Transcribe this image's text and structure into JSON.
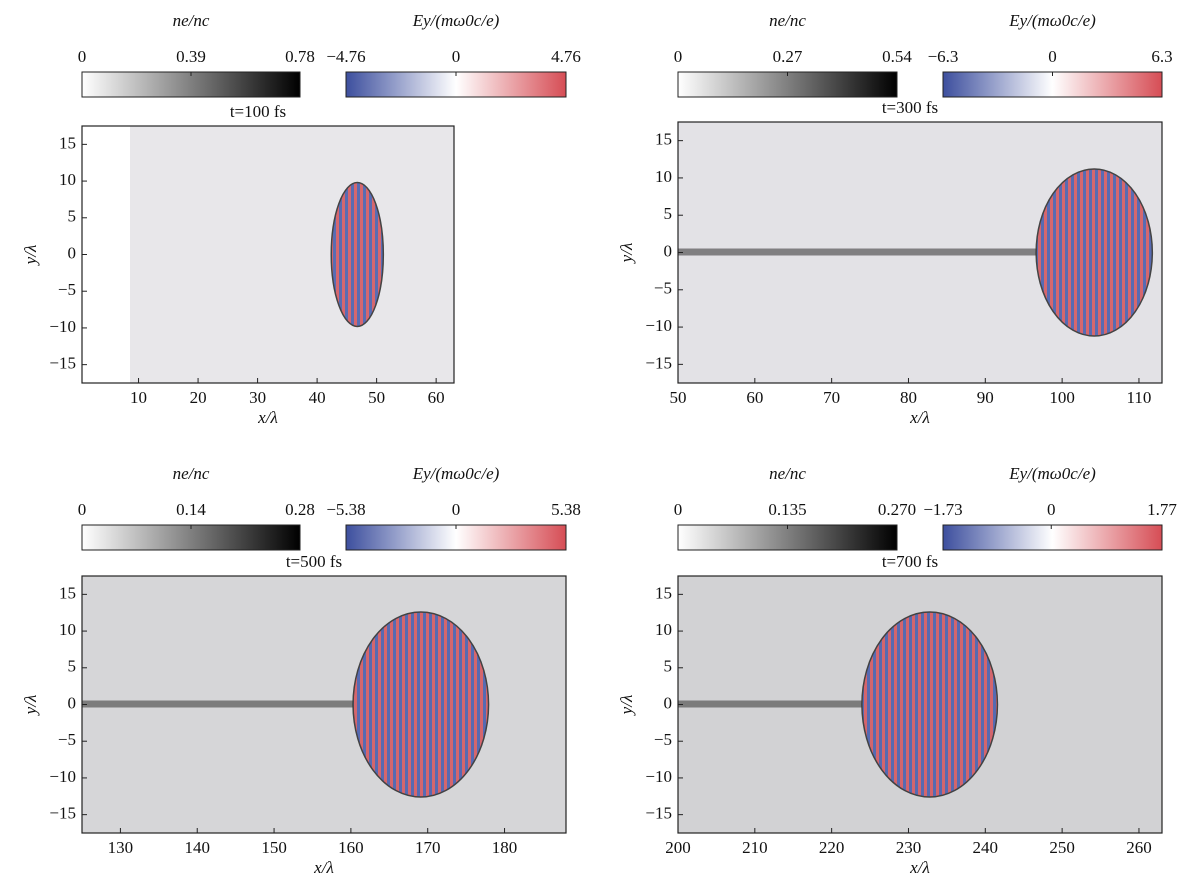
{
  "chart_data": [
    {
      "type": "heatmap",
      "title": "t=100 fs",
      "xlabel": "x/λ",
      "ylabel": "y/λ",
      "xlim": [
        0.5,
        63
      ],
      "xticks": [
        10,
        20,
        30,
        40,
        50,
        60
      ],
      "ylim": [
        -17.5,
        17.5
      ],
      "yticks": [
        {
          "value": -15,
          "label": "−15"
        },
        {
          "value": -10,
          "label": "−10"
        },
        {
          "value": -5,
          "label": "−5"
        },
        0,
        5,
        10,
        15
      ],
      "colorbars": [
        {
          "label": "ne/nc",
          "lim": [
            0,
            0.78
          ],
          "ticks": [
            0,
            0.39,
            0.78
          ],
          "colors": [
            "#ffffff",
            "#000000"
          ]
        },
        {
          "label": "Ey/(mω0c/e)",
          "lim": [
            -4.76,
            4.76
          ],
          "ticks": [
            {
              "value": -4.76,
              "label": "−4.76"
            },
            0,
            4.76
          ],
          "colors": [
            "#3d4f9e",
            "#ffffff",
            "#d64d55"
          ]
        }
      ]
    },
    {
      "type": "heatmap",
      "title": "t=300 fs",
      "xlabel": "x/λ",
      "ylabel": "y/λ",
      "xlim": [
        50,
        113
      ],
      "xticks": [
        50,
        60,
        70,
        80,
        90,
        100,
        110
      ],
      "ylim": [
        -17.5,
        17.5
      ],
      "yticks": [
        {
          "value": -15,
          "label": "−15"
        },
        {
          "value": -10,
          "label": "−10"
        },
        {
          "value": -5,
          "label": "−5"
        },
        0,
        5,
        10,
        15
      ],
      "colorbars": [
        {
          "label": "ne/nc",
          "lim": [
            0,
            0.54
          ],
          "ticks": [
            0,
            0.27,
            0.54
          ],
          "colors": [
            "#ffffff",
            "#000000"
          ]
        },
        {
          "label": "Ey/(mω0c/e)",
          "lim": [
            -6.3,
            6.3
          ],
          "ticks": [
            {
              "value": -6.3,
              "label": "−6.3"
            },
            0,
            6.3
          ],
          "colors": [
            "#3d4f9e",
            "#ffffff",
            "#d64d55"
          ]
        }
      ]
    },
    {
      "type": "heatmap",
      "title": "t=500 fs",
      "xlabel": "x/λ",
      "ylabel": "y/λ",
      "xlim": [
        125,
        188
      ],
      "xticks": [
        130,
        140,
        150,
        160,
        170,
        180
      ],
      "ylim": [
        -17.5,
        17.5
      ],
      "yticks": [
        {
          "value": -15,
          "label": "−15"
        },
        {
          "value": -10,
          "label": "−10"
        },
        {
          "value": -5,
          "label": "−5"
        },
        0,
        5,
        10,
        15
      ],
      "colorbars": [
        {
          "label": "ne/nc",
          "lim": [
            0,
            0.28
          ],
          "ticks": [
            0,
            0.14,
            0.28
          ],
          "colors": [
            "#ffffff",
            "#000000"
          ]
        },
        {
          "label": "Ey/(mω0c/e)",
          "lim": [
            -5.38,
            5.38
          ],
          "ticks": [
            {
              "value": -5.38,
              "label": "−5.38"
            },
            0,
            5.38
          ],
          "colors": [
            "#3d4f9e",
            "#ffffff",
            "#d64d55"
          ]
        }
      ]
    },
    {
      "type": "heatmap",
      "title": "t=700 fs",
      "xlabel": "x/λ",
      "ylabel": "y/λ",
      "xlim": [
        200,
        263
      ],
      "xticks": [
        200,
        210,
        220,
        230,
        240,
        250,
        260
      ],
      "ylim": [
        -17.5,
        17.5
      ],
      "yticks": [
        {
          "value": -15,
          "label": "−15"
        },
        {
          "value": -10,
          "label": "−10"
        },
        {
          "value": -5,
          "label": "−5"
        },
        0,
        5,
        10,
        15
      ],
      "colorbars": [
        {
          "label": "ne/nc",
          "lim": [
            0,
            0.27
          ],
          "ticks": [
            0,
            0.135,
            {
              "value": 0.27,
              "label": "0.270"
            }
          ],
          "colors": [
            "#ffffff",
            "#000000"
          ]
        },
        {
          "label": "Ey/(mω0c/e)",
          "lim": [
            -1.73,
            1.77
          ],
          "ticks": [
            {
              "value": -1.73,
              "label": "−1.73"
            },
            0,
            1.77
          ],
          "colors": [
            "#3d4f9e",
            "#ffffff",
            "#d64d55"
          ]
        }
      ]
    }
  ]
}
